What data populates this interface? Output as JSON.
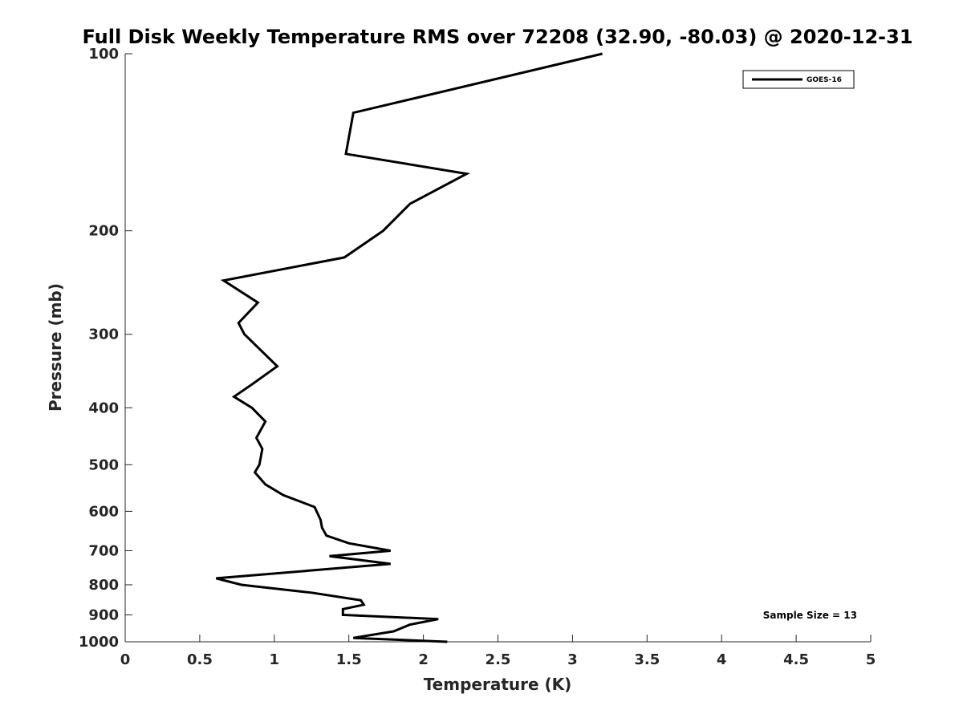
{
  "chart_data": {
    "type": "line",
    "title": "Full Disk Weekly Temperature RMS over 72208 (32.90, -80.03) @ 2020-12-31",
    "xlabel": "Temperature (K)",
    "ylabel": "Pressure (mb)",
    "xlim": [
      0,
      5
    ],
    "ylim": [
      100,
      1000
    ],
    "yscale": "log",
    "y_reversed": true,
    "xticks": [
      "0",
      "0.5",
      "1",
      "1.5",
      "2",
      "2.5",
      "3",
      "3.5",
      "4",
      "4.5",
      "5"
    ],
    "yticks": [
      "100",
      "200",
      "300",
      "400",
      "500",
      "600",
      "700",
      "800",
      "900",
      "1000"
    ],
    "legend": {
      "position": "top-right",
      "entries": [
        "GOES-16"
      ]
    },
    "annotations": {
      "sample_size": "Sample Size = 13"
    },
    "grid": false,
    "series": [
      {
        "name": "GOES-16",
        "color": "#000000",
        "points": [
          {
            "x": 3.2,
            "y": 100
          },
          {
            "x": 1.53,
            "y": 126
          },
          {
            "x": 1.48,
            "y": 148
          },
          {
            "x": 2.29,
            "y": 160
          },
          {
            "x": 1.91,
            "y": 180
          },
          {
            "x": 1.73,
            "y": 200
          },
          {
            "x": 1.47,
            "y": 222
          },
          {
            "x": 0.66,
            "y": 243
          },
          {
            "x": 0.89,
            "y": 265
          },
          {
            "x": 0.76,
            "y": 287
          },
          {
            "x": 0.8,
            "y": 300
          },
          {
            "x": 1.02,
            "y": 340
          },
          {
            "x": 0.85,
            "y": 365
          },
          {
            "x": 0.73,
            "y": 383
          },
          {
            "x": 0.85,
            "y": 400
          },
          {
            "x": 0.94,
            "y": 422
          },
          {
            "x": 0.88,
            "y": 450
          },
          {
            "x": 0.92,
            "y": 470
          },
          {
            "x": 0.9,
            "y": 500
          },
          {
            "x": 0.87,
            "y": 515
          },
          {
            "x": 0.94,
            "y": 540
          },
          {
            "x": 1.06,
            "y": 563
          },
          {
            "x": 1.27,
            "y": 590
          },
          {
            "x": 1.31,
            "y": 620
          },
          {
            "x": 1.32,
            "y": 640
          },
          {
            "x": 1.35,
            "y": 660
          },
          {
            "x": 1.5,
            "y": 680
          },
          {
            "x": 1.78,
            "y": 700
          },
          {
            "x": 1.37,
            "y": 715
          },
          {
            "x": 1.78,
            "y": 737
          },
          {
            "x": 0.61,
            "y": 780
          },
          {
            "x": 0.78,
            "y": 800
          },
          {
            "x": 1.25,
            "y": 825
          },
          {
            "x": 1.58,
            "y": 850
          },
          {
            "x": 1.6,
            "y": 865
          },
          {
            "x": 1.46,
            "y": 880
          },
          {
            "x": 1.46,
            "y": 900
          },
          {
            "x": 2.1,
            "y": 915
          },
          {
            "x": 1.91,
            "y": 935
          },
          {
            "x": 1.8,
            "y": 960
          },
          {
            "x": 1.53,
            "y": 985
          },
          {
            "x": 2.16,
            "y": 1000
          }
        ]
      }
    ]
  }
}
